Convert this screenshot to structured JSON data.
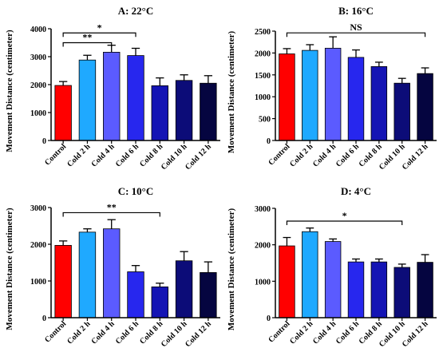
{
  "chart_data": [
    {
      "type": "bar",
      "title": "A: 22°C",
      "ylabel": "Movement Distance (centimeter)",
      "categories": [
        "Control",
        "Cold 2 h",
        "Cold 4 h",
        "Cold 6 h",
        "Cold 8 h",
        "Cold 10 h",
        "Cold 12 h"
      ],
      "values": [
        1970,
        2880,
        3160,
        3040,
        1960,
        2150,
        2050
      ],
      "errors": [
        140,
        170,
        250,
        260,
        280,
        200,
        270
      ],
      "colors": [
        "#ff0000",
        "#1fa9ff",
        "#5b5bff",
        "#2727ee",
        "#1414b4",
        "#0c0c78",
        "#050540"
      ],
      "ylim": [
        0,
        4000
      ],
      "yticks": [
        0,
        1000,
        2000,
        3000,
        4000
      ],
      "grid": false,
      "legend": "none",
      "annotations": [
        {
          "text": "*",
          "from": "Control",
          "to": "Cold 6 h",
          "level": 3850
        },
        {
          "text": "**",
          "from": "Control",
          "to": "Cold 4 h",
          "level": 3500
        }
      ]
    },
    {
      "type": "bar",
      "title": "B: 16°C",
      "ylabel": "Movement Distance (centimeter)",
      "categories": [
        "Control",
        "Cold 2 h",
        "Cold 4 h",
        "Cold 6 h",
        "Cold 8 h",
        "Cold 10 h",
        "Cold 12 h"
      ],
      "values": [
        1980,
        2060,
        2110,
        1900,
        1690,
        1310,
        1530
      ],
      "errors": [
        120,
        130,
        260,
        170,
        100,
        110,
        130
      ],
      "colors": [
        "#ff0000",
        "#1fa9ff",
        "#5b5bff",
        "#2727ee",
        "#1414b4",
        "#0c0c78",
        "#050540"
      ],
      "ylim": [
        0,
        2500
      ],
      "yticks": [
        0,
        500,
        1000,
        1500,
        2000,
        2500
      ],
      "grid": false,
      "legend": "none",
      "annotations": [
        {
          "text": "NS",
          "from": "Control",
          "to": "Cold 12 h",
          "level": 2460
        }
      ]
    },
    {
      "type": "bar",
      "title": "C: 10°C",
      "ylabel": "Movement Distance (centimeter)",
      "categories": [
        "Control",
        "Cold 2 h",
        "Cold 4 h",
        "Cold 6 h",
        "Cold 8 h",
        "Cold 10 h",
        "Cold 12 h"
      ],
      "values": [
        1970,
        2330,
        2420,
        1250,
        840,
        1550,
        1230
      ],
      "errors": [
        120,
        90,
        250,
        170,
        100,
        250,
        290
      ],
      "colors": [
        "#ff0000",
        "#1fa9ff",
        "#5b5bff",
        "#2727ee",
        "#1414b4",
        "#0c0c78",
        "#050540"
      ],
      "ylim": [
        0,
        3000
      ],
      "yticks": [
        0,
        1000,
        2000,
        3000
      ],
      "grid": false,
      "legend": "none",
      "annotations": [
        {
          "text": "**",
          "from": "Control",
          "to": "Cold 8 h",
          "level": 2860
        }
      ]
    },
    {
      "type": "bar",
      "title": "D: 4°C",
      "ylabel": "Movement Distance (centimeter)",
      "categories": [
        "Control",
        "Cold 2 h",
        "Cold 4 h",
        "Cold 6 h",
        "Cold 8 h",
        "Cold 10 h",
        "Cold 12 h"
      ],
      "values": [
        1970,
        2360,
        2090,
        1530,
        1530,
        1380,
        1520
      ],
      "errors": [
        230,
        100,
        70,
        80,
        80,
        90,
        210
      ],
      "colors": [
        "#ff0000",
        "#1fa9ff",
        "#5b5bff",
        "#2727ee",
        "#1414b4",
        "#0c0c78",
        "#050540"
      ],
      "ylim": [
        0,
        3000
      ],
      "yticks": [
        0,
        1000,
        2000,
        3000
      ],
      "grid": false,
      "legend": "none",
      "annotations": [
        {
          "text": "*",
          "from": "Control",
          "to": "Cold 10 h",
          "level": 2650
        }
      ]
    }
  ]
}
